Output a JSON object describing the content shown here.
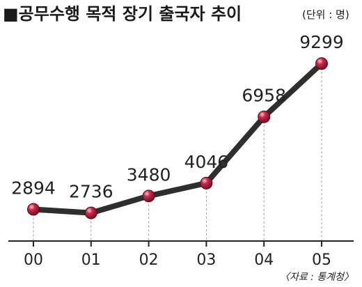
{
  "chart_data": {
    "type": "line",
    "title": "■공무수행 목적 장기 출국자 추이",
    "unit": "(단위 : 명)",
    "categories": [
      "00",
      "01",
      "02",
      "03",
      "04",
      "05"
    ],
    "values": [
      2894,
      2736,
      3480,
      4046,
      6958,
      9299
    ],
    "value_labels": [
      "2894",
      "2736",
      "3480",
      "4046",
      "6958",
      "9299"
    ],
    "source": "〈자료 : 통계청〉",
    "ylim": [
      1500,
      10500
    ],
    "grid": false,
    "colors": {
      "line": "#2e2e2e",
      "marker": "#b21f3a",
      "marker_highlight": "#f3b3c0",
      "guide": "#9a9a9a",
      "axis": "#222222"
    }
  }
}
